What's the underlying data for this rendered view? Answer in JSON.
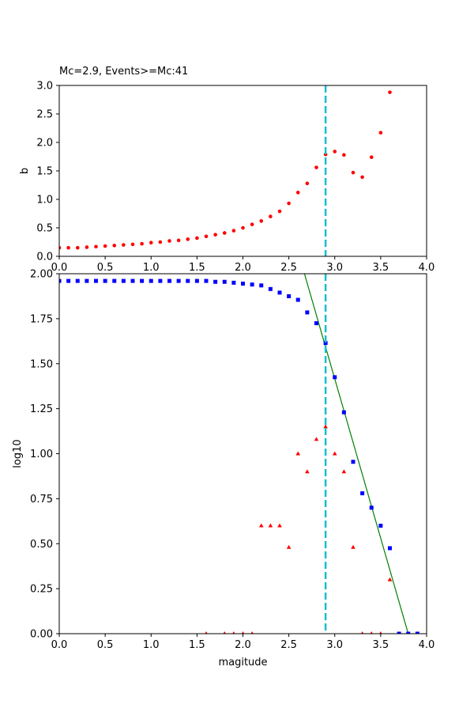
{
  "chart_data": [
    {
      "type": "scatter",
      "title": "Mc=2.9, Events>=Mc:41",
      "xlabel": "",
      "ylabel": "b",
      "xlim": [
        0,
        4
      ],
      "ylim": [
        0,
        3
      ],
      "xticks": [
        "0.0",
        "0.5",
        "1.0",
        "1.5",
        "2.0",
        "2.5",
        "3.0",
        "3.5",
        "4.0"
      ],
      "yticks": [
        "0.0",
        "0.5",
        "1.0",
        "1.5",
        "2.0",
        "2.5",
        "3.0"
      ],
      "mc_line": {
        "x": 2.9,
        "color": "#17becf",
        "style": "dashed"
      },
      "series": [
        {
          "marker": "circle",
          "color": "#ff0000",
          "x": [
            0.0,
            0.1,
            0.2,
            0.3,
            0.4,
            0.5,
            0.6,
            0.7,
            0.8,
            0.9,
            1.0,
            1.1,
            1.2,
            1.3,
            1.4,
            1.5,
            1.6,
            1.7,
            1.8,
            1.9,
            2.0,
            2.1,
            2.2,
            2.3,
            2.4,
            2.5,
            2.6,
            2.7,
            2.8,
            2.9,
            3.0,
            3.1,
            3.2,
            3.3,
            3.4,
            3.5,
            3.6
          ],
          "y": [
            0.15,
            0.15,
            0.15,
            0.16,
            0.17,
            0.18,
            0.19,
            0.2,
            0.21,
            0.22,
            0.24,
            0.25,
            0.27,
            0.28,
            0.3,
            0.32,
            0.35,
            0.38,
            0.41,
            0.45,
            0.5,
            0.56,
            0.62,
            0.7,
            0.79,
            0.93,
            1.12,
            1.28,
            1.56,
            1.79,
            1.84,
            1.78,
            1.47,
            1.39,
            1.74,
            2.17,
            2.88
          ]
        }
      ]
    },
    {
      "type": "scatter",
      "title": "",
      "xlabel": "magitude",
      "ylabel": "log10",
      "xlim": [
        0,
        4
      ],
      "ylim": [
        0,
        2
      ],
      "xticks": [
        "0.0",
        "0.5",
        "1.0",
        "1.5",
        "2.0",
        "2.5",
        "3.0",
        "3.5",
        "4.0"
      ],
      "yticks": [
        "0.00",
        "0.25",
        "0.50",
        "0.75",
        "1.00",
        "1.25",
        "1.50",
        "1.75",
        "2.00"
      ],
      "mc_line": {
        "x": 2.9,
        "color": "#17becf",
        "style": "dashed"
      },
      "fit_line": {
        "color": "#008000",
        "x": [
          2.67,
          3.8
        ],
        "y": [
          2.0,
          0.0
        ]
      },
      "series": [
        {
          "marker": "square",
          "color": "#0000ff",
          "x": [
            0.0,
            0.1,
            0.2,
            0.3,
            0.4,
            0.5,
            0.6,
            0.7,
            0.8,
            0.9,
            1.0,
            1.1,
            1.2,
            1.3,
            1.4,
            1.5,
            1.6,
            1.7,
            1.8,
            1.9,
            2.0,
            2.1,
            2.2,
            2.3,
            2.4,
            2.5,
            2.6,
            2.7,
            2.8,
            2.9,
            3.0,
            3.1,
            3.2,
            3.3,
            3.4,
            3.5,
            3.6,
            3.7,
            3.8,
            3.9
          ],
          "y": [
            1.96,
            1.96,
            1.96,
            1.96,
            1.96,
            1.96,
            1.96,
            1.96,
            1.96,
            1.96,
            1.96,
            1.96,
            1.96,
            1.96,
            1.96,
            1.96,
            1.96,
            1.955,
            1.955,
            1.95,
            1.945,
            1.94,
            1.935,
            1.915,
            1.895,
            1.875,
            1.855,
            1.785,
            1.725,
            1.615,
            1.425,
            1.23,
            0.955,
            0.78,
            0.7,
            0.6,
            0.475,
            0.0,
            0.0,
            0.0
          ]
        },
        {
          "marker": "triangle",
          "color": "#ff0000",
          "x": [
            1.6,
            1.8,
            1.9,
            2.0,
            2.1,
            2.2,
            2.3,
            2.4,
            2.5,
            2.6,
            2.7,
            2.8,
            2.9,
            3.0,
            3.1,
            3.2,
            3.3,
            3.4,
            3.5,
            3.6
          ],
          "y": [
            0.0,
            0.0,
            0.0,
            0.0,
            0.0,
            0.6,
            0.6,
            0.6,
            0.48,
            1.0,
            0.9,
            1.08,
            1.15,
            1.0,
            0.9,
            0.48,
            0.0,
            0.0,
            0.0,
            0.3
          ]
        }
      ]
    }
  ]
}
